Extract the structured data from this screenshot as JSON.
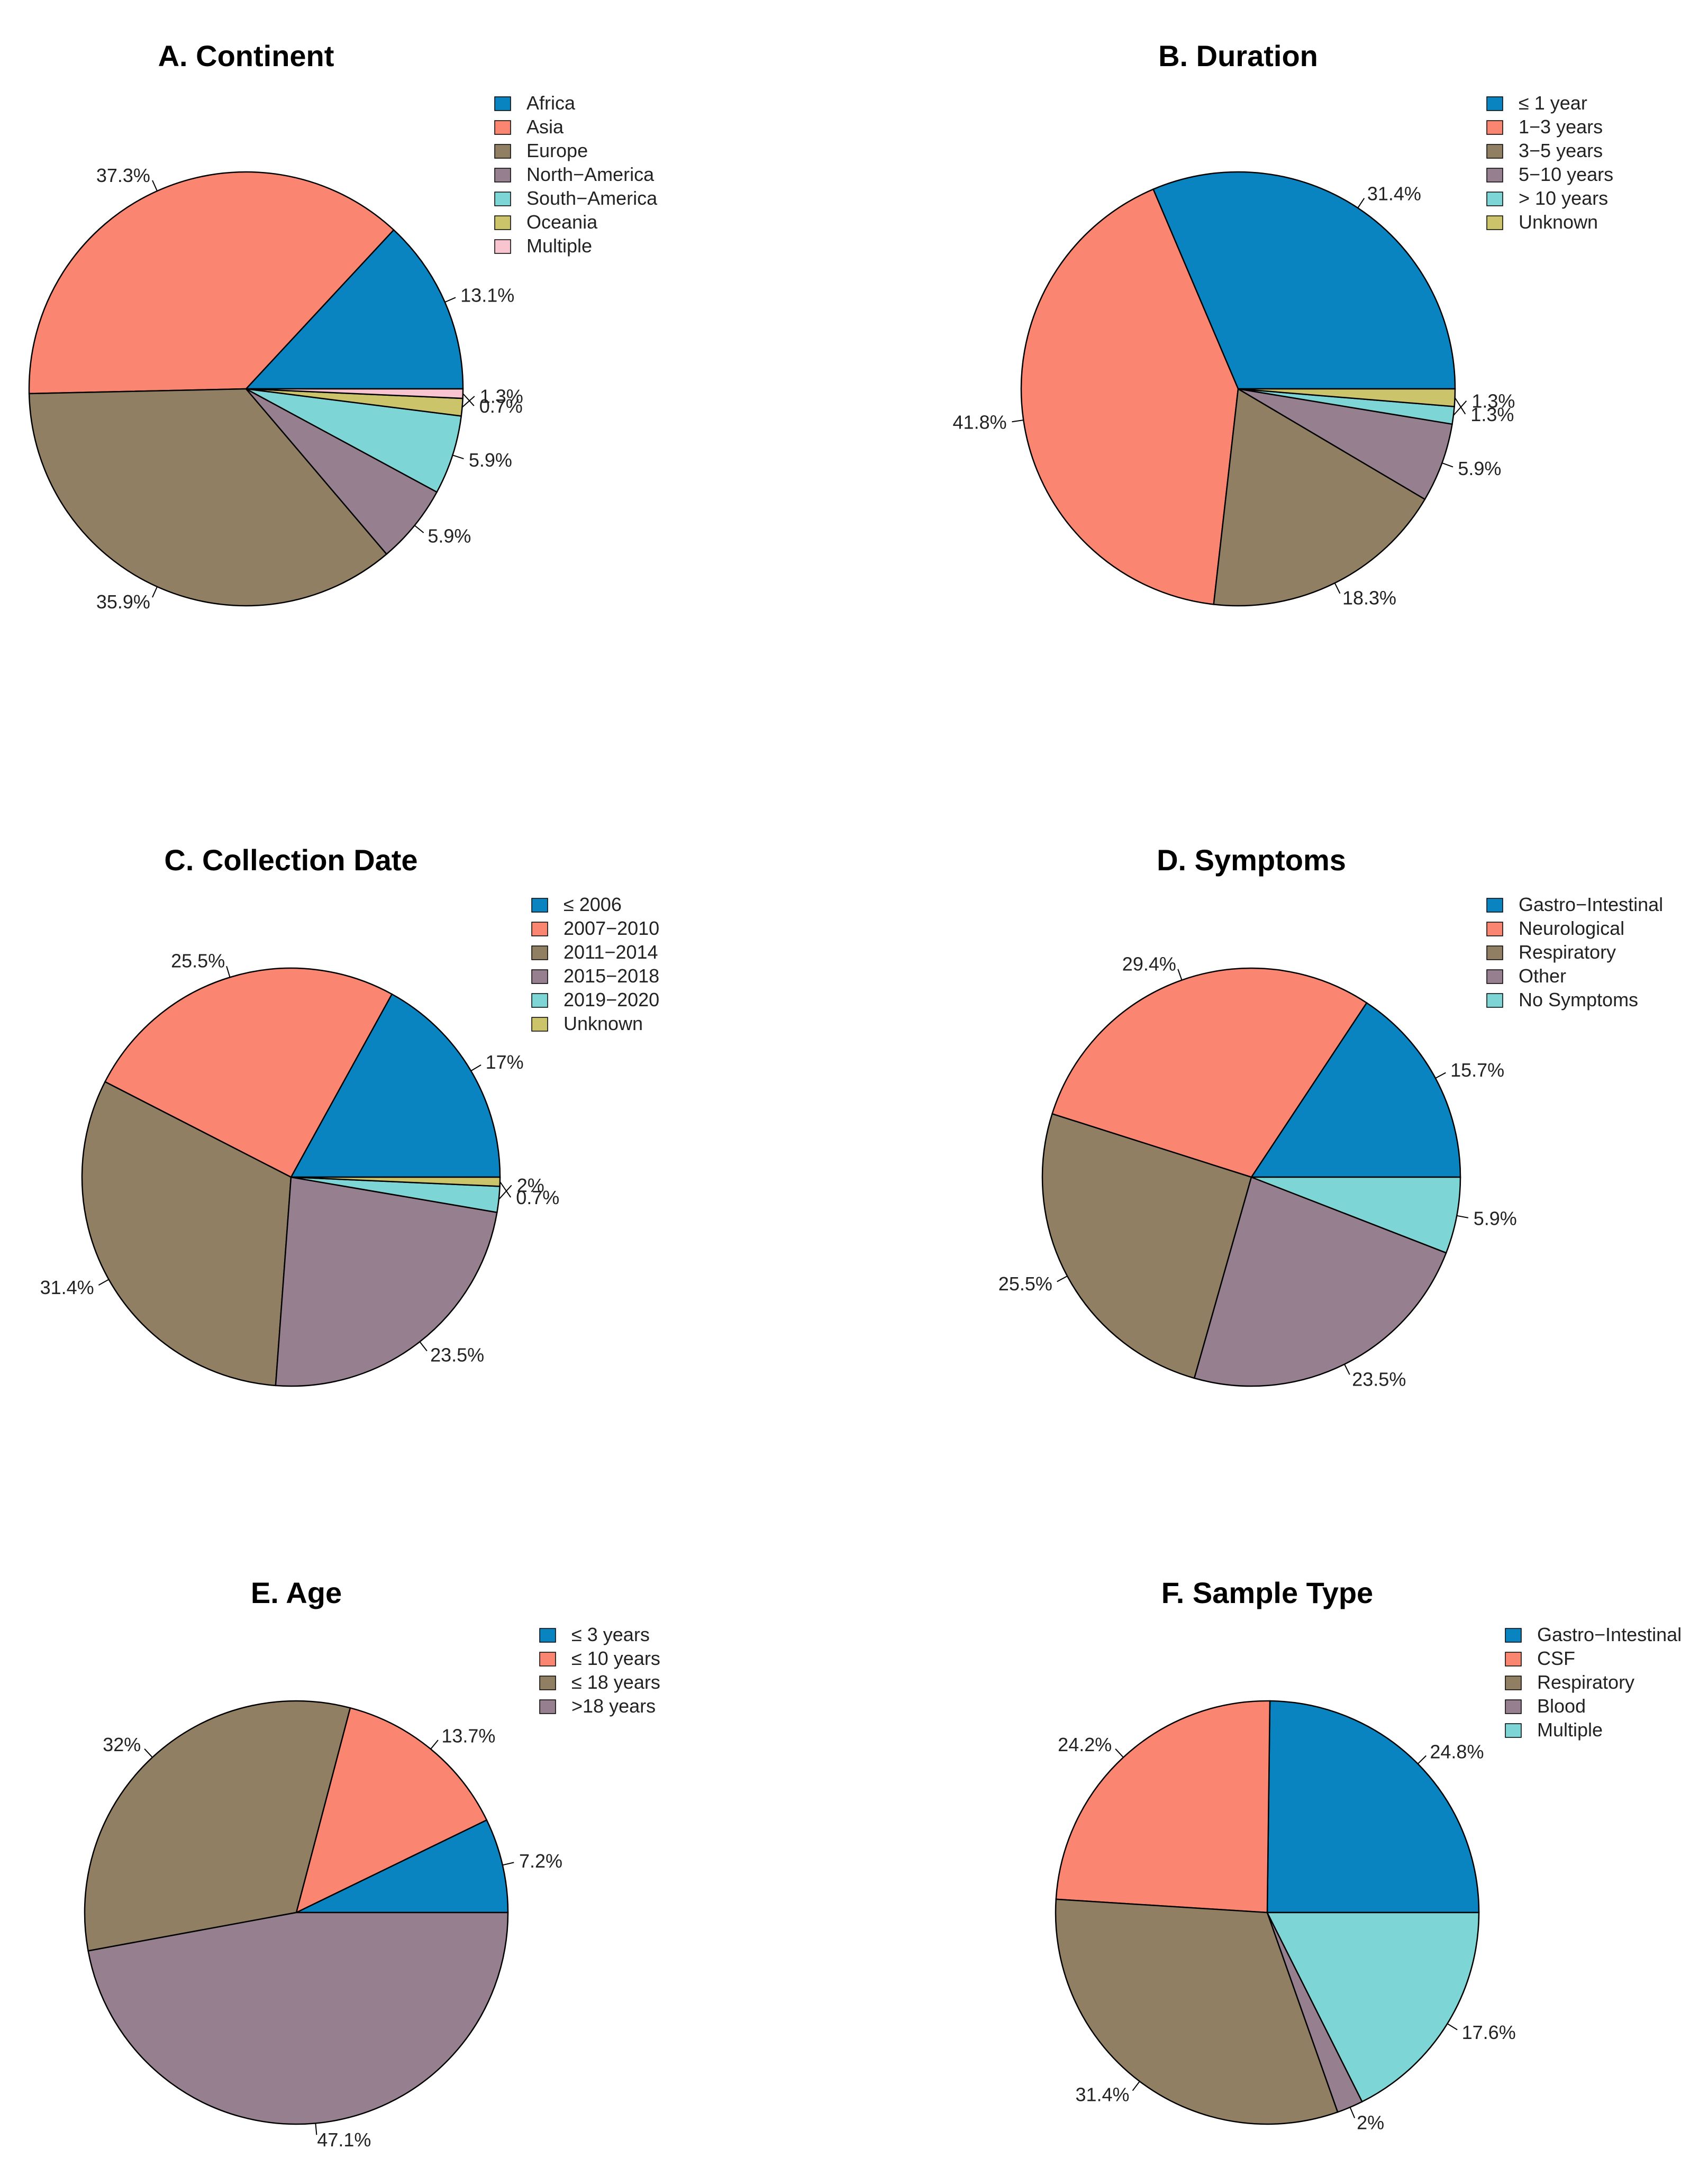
{
  "colors": {
    "blue": "#0a84c0",
    "salmon": "#fa8672",
    "khaki": "#907f63",
    "mauve": "#96808f",
    "teal": "#7dd6d5",
    "mustard": "#ccc46b",
    "pink": "#f7c4d0"
  },
  "chart_data": [
    {
      "type": "pie",
      "id": "continent",
      "title": "A. Continent",
      "categories": [
        "Africa",
        "Asia",
        "Europe",
        "North−America",
        "South−America",
        "Oceania",
        "Multiple"
      ],
      "values": [
        13.1,
        37.3,
        35.9,
        5.9,
        5.9,
        1.3,
        0.7
      ],
      "labels": [
        "13.1%",
        "37.3%",
        "35.9%",
        "5.9%",
        "5.9%",
        "1.3%",
        "0.7%"
      ],
      "colors": [
        "#0a84c0",
        "#fa8672",
        "#907f63",
        "#96808f",
        "#7dd6d5",
        "#ccc46b",
        "#f7c4d0"
      ]
    },
    {
      "type": "pie",
      "id": "duration",
      "title": "B. Duration",
      "categories": [
        "≤ 1 year",
        "1−3 years",
        "3−5 years",
        "5−10 years",
        "> 10 years",
        "Unknown"
      ],
      "values": [
        31.4,
        41.8,
        18.3,
        5.9,
        1.3,
        1.3
      ],
      "labels": [
        "31.4%",
        "41.8%",
        "18.3%",
        "5.9%",
        "1.3%",
        "1.3%"
      ],
      "colors": [
        "#0a84c0",
        "#fa8672",
        "#907f63",
        "#96808f",
        "#7dd6d5",
        "#ccc46b"
      ]
    },
    {
      "type": "pie",
      "id": "collection-date",
      "title": "C. Collection Date",
      "categories": [
        "≤ 2006",
        "2007−2010",
        "2011−2014",
        "2015−2018",
        "2019−2020",
        "Unknown"
      ],
      "values": [
        17,
        25.5,
        31.4,
        23.5,
        2,
        0.7
      ],
      "labels": [
        "17%",
        "25.5%",
        "31.4%",
        "23.5%",
        "2%",
        "0.7%"
      ],
      "colors": [
        "#0a84c0",
        "#fa8672",
        "#907f63",
        "#96808f",
        "#7dd6d5",
        "#ccc46b"
      ]
    },
    {
      "type": "pie",
      "id": "symptoms",
      "title": "D. Symptoms",
      "categories": [
        "Gastro−Intestinal",
        "Neurological",
        "Respiratory",
        "Other",
        "No Symptoms"
      ],
      "values": [
        15.7,
        29.4,
        25.5,
        23.5,
        5.9
      ],
      "labels": [
        "15.7%",
        "29.4%",
        "25.5%",
        "23.5%",
        "5.9%"
      ],
      "colors": [
        "#0a84c0",
        "#fa8672",
        "#907f63",
        "#96808f",
        "#7dd6d5"
      ]
    },
    {
      "type": "pie",
      "id": "age",
      "title": "E. Age",
      "categories": [
        "≤ 3 years",
        "≤ 10 years",
        "≤ 18 years",
        ">18 years"
      ],
      "values": [
        7.2,
        13.7,
        32,
        47.1
      ],
      "labels": [
        "7.2%",
        "13.7%",
        "32%",
        "47.1%"
      ],
      "colors": [
        "#0a84c0",
        "#fa8672",
        "#907f63",
        "#96808f"
      ]
    },
    {
      "type": "pie",
      "id": "sample-type",
      "title": "F. Sample Type",
      "categories": [
        "Gastro−Intestinal",
        "CSF",
        "Respiratory",
        "Blood",
        "Multiple"
      ],
      "values": [
        24.8,
        24.2,
        31.4,
        2,
        17.6
      ],
      "labels": [
        "24.8%",
        "24.2%",
        "31.4%",
        "2%",
        "17.6%"
      ],
      "colors": [
        "#0a84c0",
        "#fa8672",
        "#907f63",
        "#96808f",
        "#7dd6d5"
      ]
    }
  ]
}
